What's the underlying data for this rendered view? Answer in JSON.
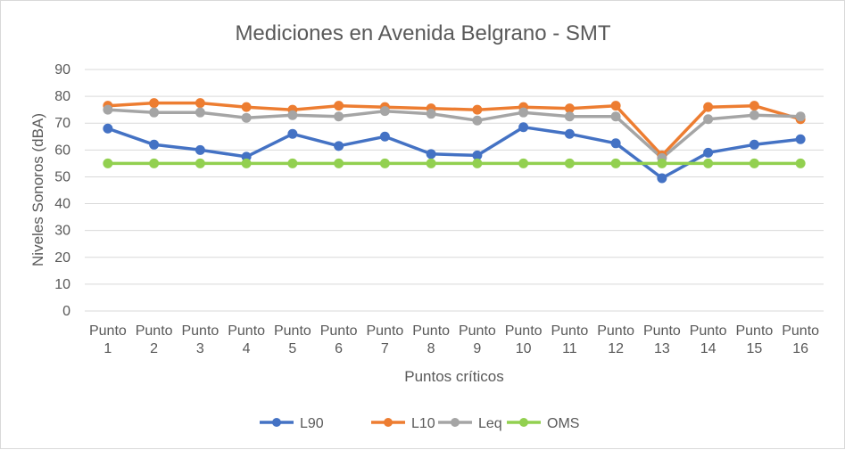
{
  "chart_data": {
    "type": "line",
    "title": "Mediciones en Avenida Belgrano - SMT",
    "xlabel": "Puntos críticos",
    "ylabel": "Niveles Sonoros (dBA)",
    "ylim": [
      0,
      90
    ],
    "yticks": [
      0,
      10,
      20,
      30,
      40,
      50,
      60,
      70,
      80,
      90
    ],
    "grid": true,
    "legend_position": "bottom",
    "categories": [
      [
        "Punto",
        "1"
      ],
      [
        "Punto",
        "2"
      ],
      [
        "Punto",
        "3"
      ],
      [
        "Punto",
        "4"
      ],
      [
        "Punto",
        "5"
      ],
      [
        "Punto",
        "6"
      ],
      [
        "Punto",
        "7"
      ],
      [
        "Punto",
        "8"
      ],
      [
        "Punto",
        "9"
      ],
      [
        "Punto",
        "10"
      ],
      [
        "Punto",
        "11"
      ],
      [
        "Punto",
        "12"
      ],
      [
        "Punto",
        "13"
      ],
      [
        "Punto",
        "14"
      ],
      [
        "Punto",
        "15"
      ],
      [
        "Punto",
        "16"
      ]
    ],
    "series": [
      {
        "name": "L90",
        "color": "#4472c4",
        "values": [
          68,
          62,
          60,
          57.5,
          66,
          61.5,
          65,
          58.5,
          58,
          68.5,
          66,
          62.5,
          49.5,
          59,
          62,
          64
        ]
      },
      {
        "name": "L10",
        "color": "#ed7d31",
        "values": [
          76.5,
          77.5,
          77.5,
          76,
          75,
          76.5,
          76,
          75.5,
          75,
          76,
          75.5,
          76.5,
          58,
          76,
          76.5,
          71.5
        ]
      },
      {
        "name": "Leq",
        "color": "#a5a5a5",
        "values": [
          75,
          74,
          74,
          72,
          73,
          72.5,
          74.5,
          73.5,
          71,
          74,
          72.5,
          72.5,
          57,
          71.5,
          73,
          72.5
        ]
      },
      {
        "name": "OMS",
        "color": "#92d050",
        "values": [
          55,
          55,
          55,
          55,
          55,
          55,
          55,
          55,
          55,
          55,
          55,
          55,
          55,
          55,
          55,
          55
        ]
      }
    ]
  }
}
